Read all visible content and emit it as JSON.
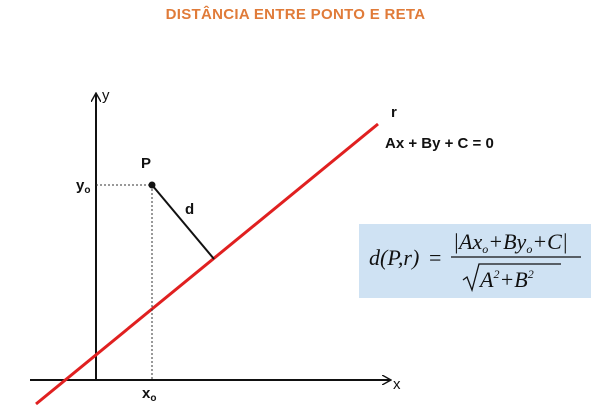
{
  "title": "DISTÂNCIA ENTRE PONTO E RETA",
  "axes": {
    "x_label": "x",
    "y_label": "y"
  },
  "point": {
    "label": "P",
    "x0_main": "x",
    "x0_sub": "o",
    "y0_main": "y",
    "y0_sub": "o"
  },
  "distance_label": "d",
  "line": {
    "label": "r",
    "equation": "Ax + By + C = 0"
  },
  "formula": {
    "lhs": "d(P,r)",
    "equals": "=",
    "numerator": "|Ax",
    "num_sub1": "o",
    "num_mid": "+By",
    "num_sub2": "o",
    "num_end": "+C|",
    "denominator": "A",
    "den_exp1": "2",
    "den_mid": "+B",
    "den_exp2": "2"
  },
  "colors": {
    "title": "#e07b39",
    "line": "#e02020",
    "formula_bg": "#cfe2f3"
  }
}
